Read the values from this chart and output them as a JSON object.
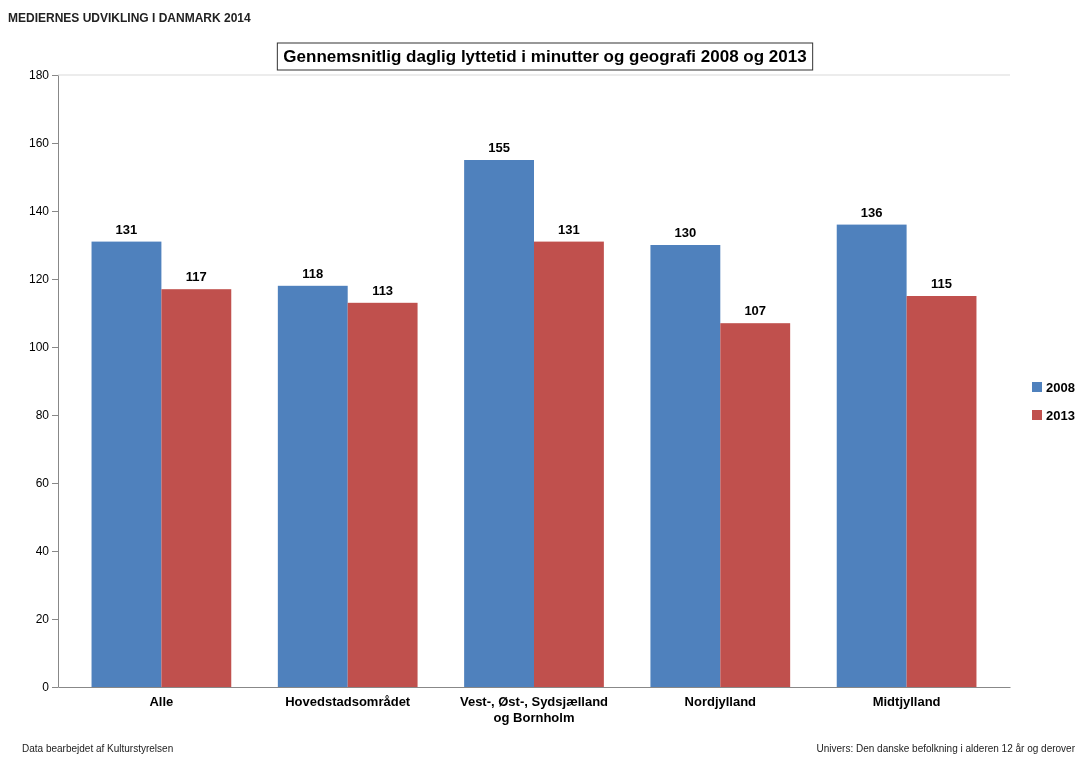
{
  "chart_data": {
    "type": "bar",
    "title": "Gennemsnitlig daglig lyttetid i minutter og geografi 2008 og 2013",
    "categories": [
      "Alle",
      "Hovedstadsområdet",
      "Vest-, Øst-, Sydsjælland og Bornholm",
      "Nordjylland",
      "Midtjylland"
    ],
    "series": [
      {
        "name": "2008",
        "color": "#4f81bd",
        "values": [
          131,
          118,
          155,
          130,
          136
        ]
      },
      {
        "name": "2013",
        "color": "#c0504d",
        "values": [
          117,
          113,
          131,
          107,
          115
        ]
      }
    ],
    "ylim": [
      0,
      180
    ],
    "yticks": [
      0,
      20,
      40,
      60,
      80,
      100,
      120,
      140,
      160,
      180
    ],
    "data_labels": true,
    "legend": "right",
    "annotations": [
      "MEDIERNES UDVIKLING I DANMARK 2014",
      "Data bearbejdet af Kulturstyrelsen",
      "Univers: Den danske befolkning i alderen 12 år og derover"
    ]
  }
}
